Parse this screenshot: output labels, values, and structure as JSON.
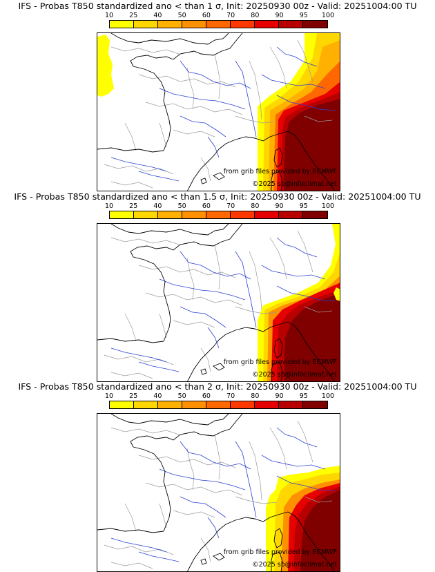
{
  "colorbar": {
    "ticks": [
      "10",
      "25",
      "40",
      "50",
      "60",
      "70",
      "80",
      "90",
      "95",
      "100"
    ],
    "colors": [
      "#ffff00",
      "#ffd700",
      "#ffb000",
      "#ff9000",
      "#ff6800",
      "#ff3800",
      "#e60000",
      "#b80000",
      "#800000"
    ]
  },
  "credits": {
    "source": "from grib files provided by ECMWF",
    "copyright": "©2025 sb@infoclimat.net"
  },
  "panels": [
    {
      "title": "IFS - Probas T850  standardized ano < than 1 σ, Init: 20250930 00z - Valid: 20251004:00 TU",
      "sigma": 1
    },
    {
      "title": "IFS - Probas T850  standardized ano < than 1.5 σ, Init: 20250930 00z - Valid: 20251004:00 TU",
      "sigma": 1.5
    },
    {
      "title": "IFS - Probas T850  standardized ano < than 2 σ, Init: 20250930 00z - Valid: 20251004:00 TU",
      "sigma": 2
    }
  ],
  "colors": {
    "coast": "#000000",
    "rivers": "#2a3fd6",
    "borders": "#9a9a9a"
  }
}
